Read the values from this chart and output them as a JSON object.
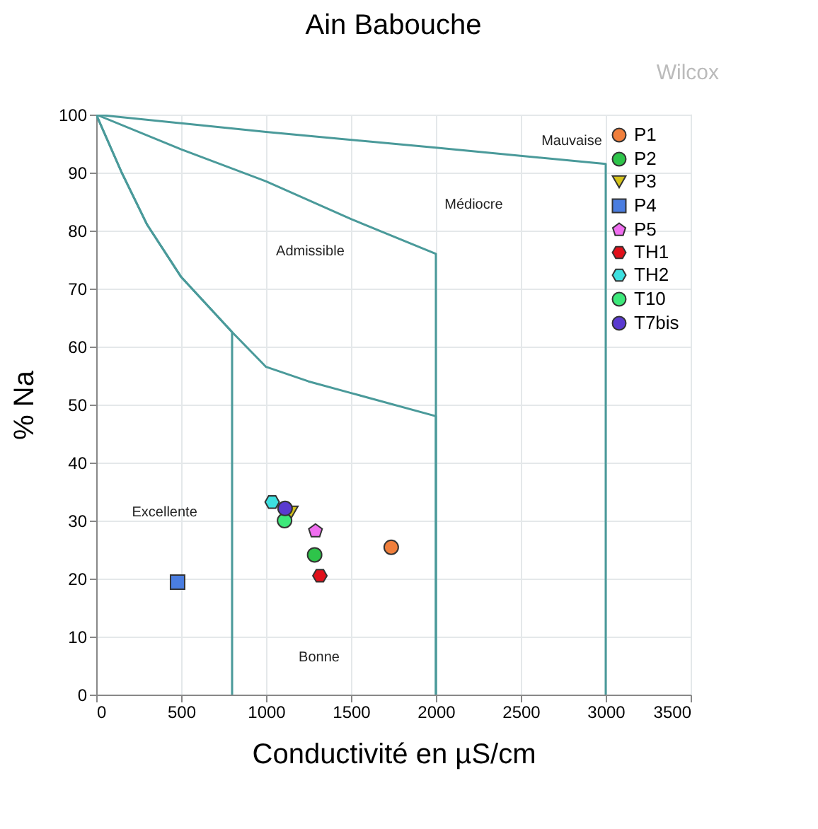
{
  "chart_data": {
    "type": "scatter",
    "title": "Ain Babouche",
    "xlabel": "Conductivité en µS/cm",
    "ylabel": "% Na",
    "xlim": [
      0,
      3500
    ],
    "xticks": [
      0,
      500,
      1000,
      1500,
      2000,
      2500,
      3000,
      3500
    ],
    "ylim": [
      0,
      100
    ],
    "yticks": [
      0,
      10,
      20,
      30,
      40,
      50,
      60,
      70,
      80,
      90,
      100
    ],
    "grid": true,
    "legend": "top right",
    "series": [
      {
        "name": "P1",
        "color": "#f07f3c",
        "marker": "circle",
        "x": [
          1737
        ],
        "values": [
          25.4
        ]
      },
      {
        "name": "P2",
        "color": "#2ec44a",
        "marker": "circle",
        "x": [
          1286
        ],
        "values": [
          24.1
        ]
      },
      {
        "name": "P3",
        "color": "#d4c21a",
        "marker": "triangle-down",
        "x": [
          1146
        ],
        "values": [
          31.4
        ]
      },
      {
        "name": "P4",
        "color": "#4a7de0",
        "marker": "square",
        "x": [
          479
        ],
        "values": [
          19.4
        ]
      },
      {
        "name": "P5",
        "color": "#f06ef0",
        "x": [
          1291
        ],
        "values": [
          28.2
        ]
      },
      {
        "name": "TH1",
        "color": "#e0101a",
        "x": [
          1317
        ],
        "values": [
          20.5
        ]
      },
      {
        "name": "TH2",
        "color": "#3de0e0",
        "x": [
          1036
        ],
        "values": [
          33.2
        ]
      },
      {
        "name": "T10",
        "color": "#3de87a",
        "marker": "circle",
        "x": [
          1109
        ],
        "values": [
          30.0
        ]
      },
      {
        "name": "T7bis",
        "color": "#5a3ad0",
        "marker": "circle",
        "x": [
          1112
        ],
        "values": [
          32.1
        ]
      },
      {
        "type": "line",
        "color": "#4a9a9a",
        "x": [
          0,
          1000,
          2000,
          3000,
          3000
        ],
        "values": [
          100,
          97,
          94.3,
          91.5,
          0
        ]
      },
      {
        "type": "line",
        "color": "#4a9a9a",
        "x": [
          0,
          500,
          1000,
          1500,
          2000,
          2000
        ],
        "values": [
          100,
          94,
          88.5,
          82,
          76,
          0
        ]
      },
      {
        "type": "line",
        "color": "#4a9a9a",
        "x": [
          0,
          150,
          300,
          500,
          800,
          1000,
          1250,
          1500,
          2000,
          2000
        ],
        "values": [
          100,
          90,
          81,
          72,
          62.5,
          56.5,
          54,
          52,
          48,
          0
        ]
      },
      {
        "type": "line",
        "color": "#4a9a9a",
        "x": [
          0,
          150,
          300,
          500,
          800,
          800
        ],
        "values": [
          100,
          90,
          81,
          72,
          62.5,
          0
        ]
      }
    ],
    "annotations": [
      "Mauvaise",
      "Médiocre",
      "Admissible",
      "Excellente",
      "Bonne",
      "Wilcox"
    ]
  }
}
